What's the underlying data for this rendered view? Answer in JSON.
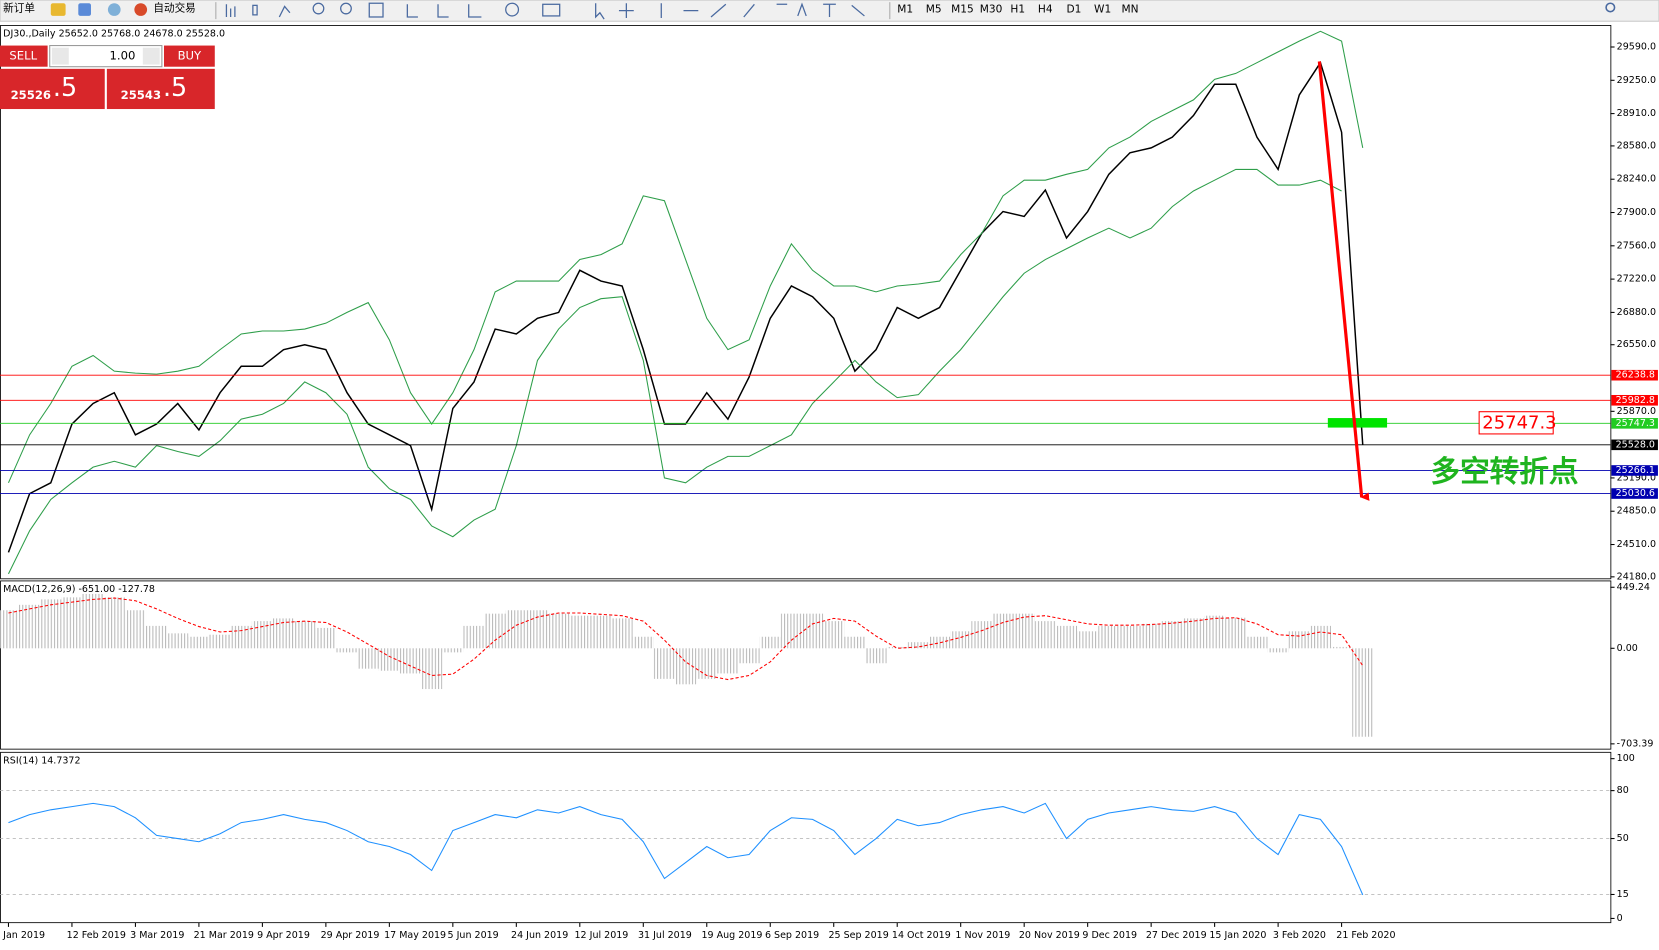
{
  "toolbar": {
    "new_order": "新订单",
    "auto_trading": "自动交易",
    "timeframes": [
      "M1",
      "M5",
      "M15",
      "M30",
      "H1",
      "H4",
      "D1",
      "W1",
      "MN"
    ]
  },
  "trade_panel": {
    "sell": "SELL",
    "buy": "BUY",
    "lots": "1.00",
    "bid_main": "25526",
    "bid_frac": ".5",
    "ask_main": "25543",
    "ask_frac": ".5"
  },
  "chart_data": [
    {
      "type": "line",
      "header": "DJ30.,Daily  25652.0 25768.0 24678.0 25528.0",
      "categories": [
        "Jan 2019",
        null,
        null,
        "12 Feb 2019",
        null,
        null,
        "3 Mar 2019",
        null,
        null,
        "21 Mar 2019",
        null,
        null,
        "9 Apr 2019",
        null,
        null,
        "29 Apr 2019",
        null,
        null,
        "17 May 2019",
        null,
        null,
        "5 Jun 2019",
        null,
        null,
        "24 Jun 2019",
        null,
        null,
        "12 Jul 2019",
        null,
        null,
        "31 Jul 2019",
        null,
        null,
        "19 Aug 2019",
        null,
        null,
        "6 Sep 2019",
        null,
        null,
        "25 Sep 2019",
        null,
        null,
        "14 Oct 2019",
        null,
        null,
        "1 Nov 2019",
        null,
        null,
        "20 Nov 2019",
        null,
        null,
        "9 Dec 2019",
        null,
        null,
        "27 Dec 2019",
        null,
        null,
        "15 Jan 2020",
        null,
        null,
        "3 Feb 2020",
        null,
        null,
        "21 Feb 2020",
        null
      ],
      "series": [
        {
          "color": "#000000",
          "values": [
            24430,
            25030,
            25140,
            25740,
            25950,
            26060,
            25630,
            25740,
            25950,
            25680,
            26060,
            26330,
            26330,
            26500,
            26550,
            26500,
            26060,
            25740,
            25630,
            25520,
            24870,
            25900,
            26170,
            26710,
            26660,
            26820,
            26880,
            27310,
            27200,
            27150,
            26500,
            25740,
            25740,
            26060,
            25790,
            26220,
            26820,
            27150,
            27040,
            26820,
            26280,
            26500,
            26930,
            26820,
            26930,
            27310,
            27690,
            27910,
            27860,
            28130,
            27640,
            27910,
            28290,
            28510,
            28560,
            28670,
            28890,
            29210,
            29210,
            28670,
            28340,
            29100,
            29430,
            28720,
            25528
          ]
        },
        {
          "color": "#2e9e4a",
          "values": [
            25140,
            25630,
            25950,
            26330,
            26440,
            26280,
            26260,
            26250,
            26280,
            26330,
            26500,
            26660,
            26690,
            26690,
            26710,
            26770,
            26880,
            26980,
            26600,
            26060,
            25740,
            26060,
            26500,
            27090,
            27200,
            27200,
            27200,
            27420,
            27470,
            27580,
            28070,
            28020,
            27420,
            26820,
            26500,
            26600,
            27150,
            27580,
            27310,
            27150,
            27150,
            27090,
            27150,
            27170,
            27200,
            27470,
            27690,
            28070,
            28230,
            28230,
            28290,
            28340,
            28560,
            28670,
            28830,
            28940,
            29050,
            29260,
            29320,
            29430,
            29540,
            29650,
            29750,
            29650,
            28560
          ]
        },
        {
          "color": "#2e9e4a",
          "values": [
            24210,
            24650,
            24970,
            25140,
            25300,
            25360,
            25300,
            25520,
            25460,
            25410,
            25570,
            25790,
            25840,
            25950,
            26170,
            26060,
            25840,
            25300,
            25080,
            24970,
            24700,
            24590,
            24760,
            24870,
            25520,
            26390,
            26710,
            26930,
            27020,
            27040,
            26390,
            25190,
            25140,
            25300,
            25410,
            25410,
            25520,
            25630,
            25950,
            26170,
            26390,
            26170,
            26010,
            26040,
            26280,
            26500,
            26770,
            27040,
            27280,
            27420,
            27530,
            27640,
            27740,
            27640,
            27740,
            27960,
            28120,
            28230,
            28340,
            28340,
            28180,
            28180,
            28230,
            28120,
            null
          ]
        }
      ],
      "ylim": [
        24160,
        29810
      ],
      "yticks": [
        {
          "value": 24180,
          "label": "24180.0"
        },
        {
          "value": 24510,
          "label": "24510.0"
        },
        {
          "value": 24850,
          "label": "24850.0"
        },
        {
          "value": 25190,
          "label": "25190.0"
        },
        {
          "value": 25870,
          "label": "25870.0"
        },
        {
          "value": 26550,
          "label": "26550.0"
        },
        {
          "value": 26880,
          "label": "26880.0"
        },
        {
          "value": 27220,
          "label": "27220.0"
        },
        {
          "value": 27560,
          "label": "27560.0"
        },
        {
          "value": 27900,
          "label": "27900.0"
        },
        {
          "value": 28240,
          "label": "28240.0"
        },
        {
          "value": 28580,
          "label": "28580.0"
        },
        {
          "value": 28910,
          "label": "28910.0"
        },
        {
          "value": 29250,
          "label": "29250.0"
        },
        {
          "value": 29590,
          "label": "29590.0"
        }
      ],
      "grid": false,
      "levels": [
        {
          "value": 26238.8,
          "label": "26238.8",
          "color": "#ff0000"
        },
        {
          "value": 25982.8,
          "label": "25982.8",
          "color": "#ff0000"
        },
        {
          "value": 25747.3,
          "label": "25747.3",
          "color": "#22cc22"
        },
        {
          "value": 25528.0,
          "label": "25528.0",
          "color": "#000000"
        },
        {
          "value": 25266.1,
          "label": "25266.1",
          "color": "#0000b0"
        },
        {
          "value": 25030.6,
          "label": "25030.6",
          "color": "#0000b0"
        }
      ],
      "turn_point": {
        "value": 25747.3,
        "label": "25747.3",
        "text": "多空转折点"
      }
    },
    {
      "type": "bar",
      "header": "MACD(12,26,9) -651.00 -127.78",
      "series": [
        {
          "color": "#b8b8b8",
          "values": [
            280,
            320,
            360,
            375,
            400,
            375,
            280,
            165,
            110,
            85,
            100,
            165,
            200,
            220,
            200,
            150,
            -30,
            -150,
            -165,
            -185,
            -300,
            -30,
            165,
            255,
            280,
            280,
            255,
            240,
            240,
            220,
            85,
            -225,
            -265,
            -225,
            -185,
            -110,
            85,
            255,
            255,
            200,
            85,
            -110,
            10,
            45,
            85,
            125,
            200,
            255,
            255,
            200,
            165,
            125,
            165,
            165,
            180,
            200,
            220,
            240,
            225,
            85,
            -30,
            125,
            165,
            10,
            -651.0
          ]
        },
        {
          "type": "line",
          "style": "dashed",
          "color": "#ff0000",
          "values": [
            260,
            290,
            320,
            340,
            360,
            370,
            350,
            290,
            220,
            160,
            120,
            130,
            160,
            190,
            200,
            190,
            120,
            30,
            -60,
            -130,
            -200,
            -190,
            -80,
            60,
            170,
            230,
            260,
            260,
            250,
            240,
            200,
            60,
            -100,
            -200,
            -230,
            -200,
            -100,
            60,
            180,
            220,
            200,
            90,
            0,
            10,
            40,
            80,
            130,
            190,
            230,
            240,
            210,
            180,
            170,
            170,
            175,
            185,
            200,
            220,
            225,
            180,
            100,
            90,
            120,
            100,
            -127.78
          ]
        }
      ],
      "ylim": [
        -703.39,
        449.24
      ],
      "yticks": [
        {
          "value": -703.39,
          "label": "-703.39"
        },
        {
          "value": 0,
          "label": "0.00"
        },
        {
          "value": 449.24,
          "label": "449.24"
        }
      ],
      "grid": false
    },
    {
      "type": "line",
      "header": "RSI(14) 14.7372",
      "series": [
        {
          "color": "#1e90ff",
          "values": [
            60,
            65,
            68,
            70,
            72,
            70,
            63,
            52,
            50,
            48,
            53,
            60,
            62,
            65,
            62,
            60,
            55,
            48,
            45,
            40,
            30,
            55,
            60,
            65,
            63,
            68,
            66,
            70,
            65,
            62,
            48,
            25,
            35,
            45,
            38,
            40,
            55,
            63,
            62,
            55,
            40,
            50,
            62,
            58,
            60,
            65,
            68,
            70,
            66,
            72,
            50,
            62,
            66,
            68,
            70,
            68,
            67,
            70,
            66,
            50,
            40,
            65,
            62,
            45,
            14.7372
          ]
        }
      ],
      "ylim": [
        0,
        100
      ],
      "yticks": [
        0,
        15,
        50,
        80,
        100
      ],
      "grid": true
    }
  ]
}
